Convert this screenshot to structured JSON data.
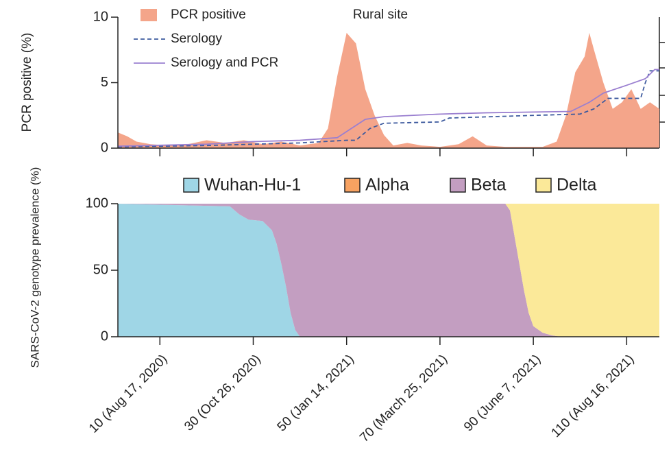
{
  "chart_data": [
    {
      "type": "area-line",
      "y_label": "PCR positive (%)",
      "annotation": "Rural site",
      "xlim": [
        1,
        117
      ],
      "xticks": [
        10,
        30,
        50,
        70,
        90,
        110
      ],
      "ylim": [
        0,
        10
      ],
      "yticks": [
        0,
        5,
        10
      ],
      "series": [
        {
          "name": "PCR positive",
          "kind": "area",
          "color": "#f4a58a",
          "x": [
            1,
            3,
            5,
            8,
            12,
            16,
            20,
            24,
            28,
            32,
            36,
            40,
            44,
            46,
            48,
            50,
            52,
            54,
            56,
            58,
            60,
            63,
            66,
            70,
            74,
            77,
            80,
            84,
            88,
            92,
            95,
            97,
            99,
            101,
            102,
            103,
            105,
            107,
            109,
            111,
            113,
            115,
            117
          ],
          "values": [
            1.2,
            0.9,
            0.5,
            0.3,
            0.2,
            0.3,
            0.6,
            0.4,
            0.6,
            0.3,
            0.5,
            0.2,
            0.4,
            1.5,
            5.5,
            8.8,
            8.0,
            4.5,
            2.5,
            1.0,
            0.2,
            0.4,
            0.2,
            0.1,
            0.3,
            0.9,
            0.2,
            0.1,
            0.1,
            0.1,
            0.5,
            2.5,
            5.8,
            7.0,
            8.8,
            7.5,
            5.0,
            3.0,
            3.5,
            4.5,
            3.0,
            3.5,
            3.0
          ]
        },
        {
          "name": "Serology",
          "kind": "dashed",
          "color": "#3d5a9e",
          "x": [
            1,
            20,
            30,
            40,
            50,
            52,
            55,
            58,
            70,
            72,
            90,
            100,
            103,
            106,
            113,
            114,
            115,
            117
          ],
          "values": [
            0.1,
            0.2,
            0.3,
            0.4,
            0.6,
            0.6,
            1.5,
            1.9,
            2.0,
            2.3,
            2.5,
            2.6,
            3.0,
            3.8,
            3.8,
            5.0,
            5.9,
            5.9
          ]
        },
        {
          "name": "Serology and PCR",
          "kind": "line",
          "color": "#9a7fd0",
          "x": [
            1,
            20,
            30,
            40,
            48,
            51,
            54,
            58,
            70,
            80,
            98,
            102,
            105,
            110,
            114,
            116,
            117
          ],
          "values": [
            0.15,
            0.3,
            0.5,
            0.6,
            0.8,
            1.5,
            2.2,
            2.4,
            2.6,
            2.7,
            2.8,
            3.5,
            4.2,
            4.8,
            5.3,
            6.0,
            6.0
          ]
        }
      ]
    },
    {
      "type": "stacked-area",
      "y_label": "SARS-CoV-2 genotype prevalence (%)",
      "xlim": [
        1,
        117
      ],
      "xticks": [
        {
          "value": 10,
          "label": "10 (Aug 17, 2020)"
        },
        {
          "value": 30,
          "label": "30 (Oct 26, 2020)"
        },
        {
          "value": 50,
          "label": "50 (Jan 14, 2021)"
        },
        {
          "value": 70,
          "label": "70 (March 25, 2021)"
        },
        {
          "value": 90,
          "label": "90 (June 7, 2021)"
        },
        {
          "value": 110,
          "label": "110 (Aug 16, 2021)"
        }
      ],
      "ylim": [
        0,
        100
      ],
      "yticks": [
        0,
        50,
        100
      ],
      "x": [
        1,
        25,
        27,
        29,
        32,
        34,
        35,
        36,
        37,
        38,
        39,
        40,
        84,
        85,
        86,
        87,
        88,
        89,
        90,
        92,
        94,
        96,
        117
      ],
      "series": [
        {
          "name": "Wuhan-Hu-1",
          "color": "#9fd6e6",
          "values": [
            100,
            98,
            92,
            88,
            87,
            80,
            70,
            55,
            38,
            18,
            5,
            0,
            0,
            0,
            0,
            0,
            0,
            0,
            0,
            0,
            0,
            0,
            0
          ]
        },
        {
          "name": "Alpha",
          "color": "#f7a261",
          "values": [
            0,
            0,
            0,
            0,
            0,
            0,
            0,
            0,
            0,
            0,
            0,
            0,
            0,
            0,
            0,
            0,
            0,
            0,
            0,
            0,
            0,
            0,
            0
          ]
        },
        {
          "name": "Beta",
          "color": "#c39ec1",
          "values": [
            0,
            2,
            8,
            12,
            13,
            20,
            30,
            45,
            62,
            82,
            95,
            100,
            100,
            95,
            75,
            55,
            35,
            18,
            8,
            3,
            1,
            0,
            0
          ]
        },
        {
          "name": "Delta",
          "color": "#fbe999",
          "values": [
            0,
            0,
            0,
            0,
            0,
            0,
            0,
            0,
            0,
            0,
            0,
            0,
            0,
            5,
            25,
            45,
            65,
            82,
            92,
            97,
            99,
            100,
            100
          ]
        }
      ]
    }
  ]
}
